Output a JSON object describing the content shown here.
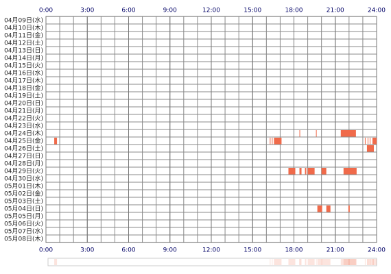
{
  "chart_data": {
    "type": "timeline",
    "xlim": [
      0,
      24
    ],
    "xticks": [
      {
        "value": 0,
        "label": "0:00"
      },
      {
        "value": 3,
        "label": "3:00"
      },
      {
        "value": 6,
        "label": "6:00"
      },
      {
        "value": 9,
        "label": "9:00"
      },
      {
        "value": 12,
        "label": "12:00"
      },
      {
        "value": 15,
        "label": "15:00"
      },
      {
        "value": 18,
        "label": "18:00"
      },
      {
        "value": 21,
        "label": "21:00"
      },
      {
        "value": 24,
        "label": "24:00"
      }
    ],
    "color": "#f06a4a",
    "rows": [
      {
        "label": "04月09日(水)",
        "segments": []
      },
      {
        "label": "04月10日(木)",
        "segments": []
      },
      {
        "label": "04月11日(金)",
        "segments": []
      },
      {
        "label": "04月12日(土)",
        "segments": []
      },
      {
        "label": "04月13日(日)",
        "segments": []
      },
      {
        "label": "04月14日(月)",
        "segments": []
      },
      {
        "label": "04月15日(火)",
        "segments": []
      },
      {
        "label": "04月16日(水)",
        "segments": []
      },
      {
        "label": "04月17日(木)",
        "segments": []
      },
      {
        "label": "04月18日(金)",
        "segments": []
      },
      {
        "label": "04月19日(土)",
        "segments": []
      },
      {
        "label": "04月20日(日)",
        "segments": []
      },
      {
        "label": "04月21日(月)",
        "segments": []
      },
      {
        "label": "04月22日(火)",
        "segments": []
      },
      {
        "label": "04月23日(水)",
        "segments": []
      },
      {
        "label": "04月24日(木)",
        "segments": [
          [
            18.4,
            18.45
          ],
          [
            19.6,
            19.65
          ],
          [
            21.4,
            22.5
          ]
        ]
      },
      {
        "label": "04月25日(金)",
        "segments": [
          [
            0.6,
            0.8
          ],
          [
            16.25,
            16.3
          ],
          [
            16.4,
            16.45
          ],
          [
            16.55,
            17.1
          ],
          [
            23.15,
            23.2
          ],
          [
            23.35,
            23.4
          ],
          [
            23.5,
            23.55
          ],
          [
            23.7,
            24
          ]
        ]
      },
      {
        "label": "04月26日(土)",
        "segments": [
          [
            23.3,
            23.8
          ]
        ]
      },
      {
        "label": "04月27日(日)",
        "segments": []
      },
      {
        "label": "04月28日(月)",
        "segments": []
      },
      {
        "label": "04月29日(火)",
        "segments": [
          [
            17.6,
            18.1
          ],
          [
            18.4,
            18.55
          ],
          [
            18.8,
            18.9
          ],
          [
            19.0,
            19.5
          ],
          [
            20.0,
            20.35
          ],
          [
            21.6,
            22.55
          ]
        ]
      },
      {
        "label": "04月30日(水)",
        "segments": []
      },
      {
        "label": "05月01日(木)",
        "segments": []
      },
      {
        "label": "05月02日(金)",
        "segments": []
      },
      {
        "label": "05月03日(土)",
        "segments": []
      },
      {
        "label": "05月04日(日)",
        "segments": [
          [
            19.7,
            20.05
          ],
          [
            20.35,
            20.65
          ],
          [
            21.95,
            22.05
          ]
        ]
      },
      {
        "label": "05月05日(月)",
        "segments": []
      },
      {
        "label": "05月06日(火)",
        "segments": []
      },
      {
        "label": "05月07日(水)",
        "segments": []
      },
      {
        "label": "05月08日(木)",
        "segments": []
      }
    ]
  }
}
